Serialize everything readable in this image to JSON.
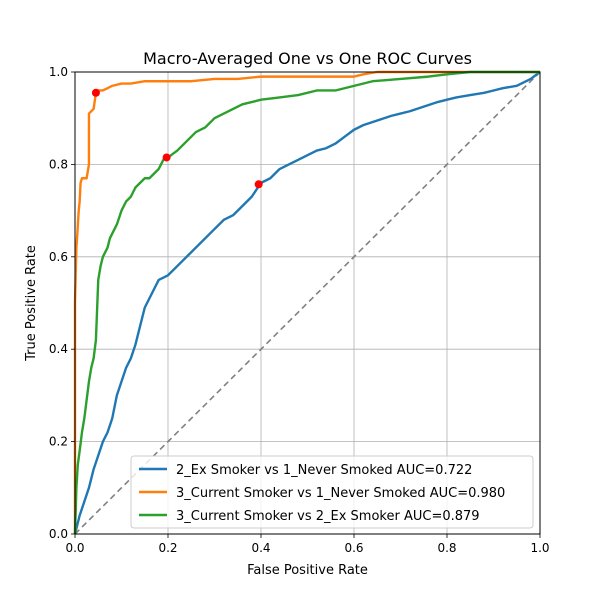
{
  "chart_data": {
    "type": "line",
    "title": "Macro-Averaged One vs One ROC Curves",
    "xlabel": "False Positive Rate",
    "ylabel": "True Positive Rate",
    "xlim": [
      0,
      1
    ],
    "ylim": [
      0,
      1
    ],
    "xticks": [
      "0.0",
      "0.2",
      "0.4",
      "0.6",
      "0.8",
      "1.0"
    ],
    "yticks": [
      "0.0",
      "0.2",
      "0.4",
      "0.6",
      "0.8",
      "1.0"
    ],
    "grid": true,
    "legend_position": "lower-right",
    "diagonal": {
      "x": [
        0,
        1
      ],
      "y": [
        0,
        1
      ],
      "color": "#808080",
      "style": "dashed"
    },
    "series": [
      {
        "name": "2_Ex Smoker vs 1_Never Smoked AUC=0.722",
        "color": "#1f77b4",
        "x": [
          0,
          0.005,
          0.01,
          0.02,
          0.03,
          0.04,
          0.05,
          0.06,
          0.07,
          0.08,
          0.09,
          0.1,
          0.11,
          0.12,
          0.13,
          0.14,
          0.15,
          0.16,
          0.17,
          0.18,
          0.2,
          0.22,
          0.24,
          0.26,
          0.28,
          0.3,
          0.32,
          0.34,
          0.36,
          0.38,
          0.4,
          0.42,
          0.44,
          0.46,
          0.48,
          0.5,
          0.52,
          0.54,
          0.56,
          0.58,
          0.6,
          0.62,
          0.65,
          0.68,
          0.7,
          0.72,
          0.75,
          0.78,
          0.8,
          0.82,
          0.85,
          0.88,
          0.9,
          0.92,
          0.95,
          0.98,
          1.0
        ],
        "y": [
          0,
          0.02,
          0.04,
          0.07,
          0.1,
          0.14,
          0.17,
          0.2,
          0.22,
          0.25,
          0.3,
          0.33,
          0.36,
          0.38,
          0.41,
          0.45,
          0.49,
          0.51,
          0.53,
          0.55,
          0.56,
          0.58,
          0.6,
          0.62,
          0.64,
          0.66,
          0.68,
          0.69,
          0.71,
          0.73,
          0.76,
          0.77,
          0.79,
          0.8,
          0.81,
          0.82,
          0.83,
          0.835,
          0.845,
          0.86,
          0.875,
          0.885,
          0.895,
          0.905,
          0.91,
          0.915,
          0.925,
          0.935,
          0.94,
          0.945,
          0.95,
          0.955,
          0.96,
          0.965,
          0.97,
          0.985,
          1.0
        ]
      },
      {
        "name": "3_Current Smoker vs 1_Never Smoked AUC=0.980",
        "color": "#ff7f0e",
        "x": [
          0,
          0,
          0.003,
          0.005,
          0.008,
          0.01,
          0.012,
          0.015,
          0.02,
          0.025,
          0.03,
          0.03,
          0.04,
          0.045,
          0.05,
          0.06,
          0.07,
          0.08,
          0.1,
          0.12,
          0.15,
          0.2,
          0.25,
          0.3,
          0.35,
          0.4,
          0.45,
          0.5,
          0.55,
          0.6,
          0.62,
          0.65,
          0.7,
          0.8,
          0.9,
          1.0
        ],
        "y": [
          0,
          0.5,
          0.62,
          0.65,
          0.7,
          0.72,
          0.76,
          0.77,
          0.77,
          0.77,
          0.8,
          0.91,
          0.92,
          0.955,
          0.96,
          0.96,
          0.965,
          0.97,
          0.975,
          0.975,
          0.98,
          0.98,
          0.98,
          0.985,
          0.985,
          0.99,
          0.99,
          0.99,
          0.99,
          0.99,
          0.995,
          1.0,
          1.0,
          1.0,
          1.0,
          1.0
        ]
      },
      {
        "name": "3_Current Smoker vs 2_Ex Smoker AUC=0.879",
        "color": "#2ca02c",
        "x": [
          0,
          0.003,
          0.006,
          0.01,
          0.015,
          0.02,
          0.025,
          0.03,
          0.035,
          0.04,
          0.045,
          0.05,
          0.055,
          0.06,
          0.065,
          0.07,
          0.075,
          0.08,
          0.09,
          0.1,
          0.11,
          0.12,
          0.13,
          0.14,
          0.15,
          0.16,
          0.17,
          0.18,
          0.19,
          0.2,
          0.22,
          0.24,
          0.26,
          0.28,
          0.3,
          0.32,
          0.34,
          0.36,
          0.38,
          0.4,
          0.44,
          0.48,
          0.52,
          0.56,
          0.6,
          0.64,
          0.7,
          0.76,
          0.8,
          0.85,
          0.9,
          0.95,
          1.0
        ],
        "y": [
          0,
          0.1,
          0.15,
          0.18,
          0.22,
          0.25,
          0.29,
          0.33,
          0.36,
          0.38,
          0.42,
          0.55,
          0.58,
          0.6,
          0.61,
          0.62,
          0.64,
          0.65,
          0.67,
          0.7,
          0.72,
          0.73,
          0.75,
          0.76,
          0.77,
          0.77,
          0.78,
          0.79,
          0.81,
          0.815,
          0.83,
          0.85,
          0.87,
          0.88,
          0.9,
          0.91,
          0.92,
          0.93,
          0.935,
          0.94,
          0.945,
          0.95,
          0.96,
          0.96,
          0.97,
          0.98,
          0.985,
          0.99,
          0.995,
          1.0,
          1.0,
          1.0,
          1.0
        ]
      }
    ],
    "markers": {
      "color": "#ff0000",
      "points": [
        {
          "x": 0.045,
          "y": 0.955
        },
        {
          "x": 0.197,
          "y": 0.815
        },
        {
          "x": 0.395,
          "y": 0.757
        }
      ]
    }
  }
}
